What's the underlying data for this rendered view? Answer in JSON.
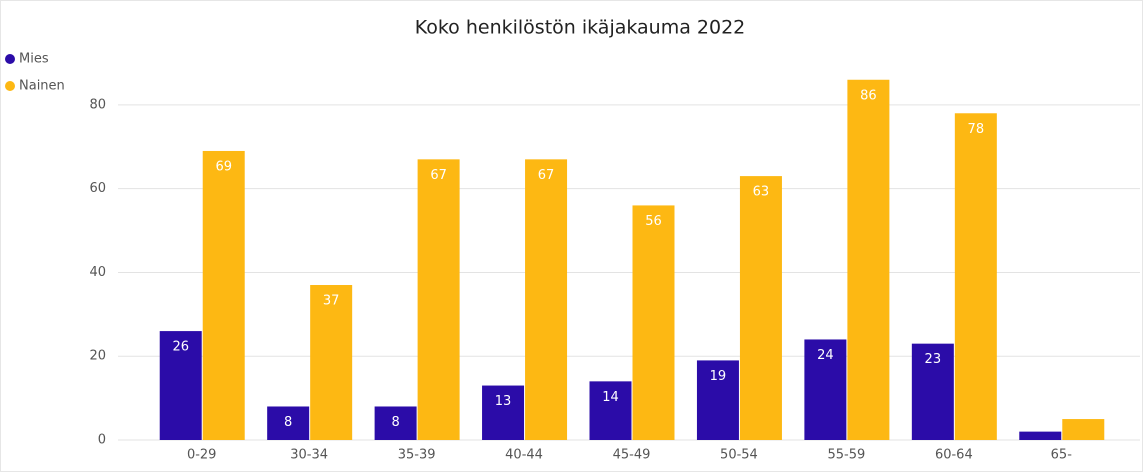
{
  "chart_data": {
    "type": "bar",
    "title": "Koko henkilöstön ikäjakauma 2022",
    "categories": [
      "0-29",
      "30-34",
      "35-39",
      "40-44",
      "45-49",
      "50-54",
      "55-59",
      "60-64",
      "65-"
    ],
    "series": [
      {
        "name": "Mies",
        "color": "#2b0ca8",
        "values": [
          26,
          8,
          8,
          13,
          14,
          19,
          24,
          23,
          2
        ],
        "value_labels": [
          "26",
          "8",
          "8",
          "13",
          "14",
          "19",
          "24",
          "23",
          null
        ]
      },
      {
        "name": "Nainen",
        "color": "#fdb813",
        "values": [
          69,
          37,
          67,
          67,
          56,
          63,
          86,
          78,
          5
        ],
        "value_labels": [
          "69",
          "37",
          "67",
          "67",
          "56",
          "63",
          "86",
          "78",
          null
        ]
      }
    ],
    "ylim": [
      0,
      90
    ],
    "yticks": [
      0,
      20,
      40,
      60,
      80
    ],
    "grid": true,
    "legend": "top-left"
  }
}
